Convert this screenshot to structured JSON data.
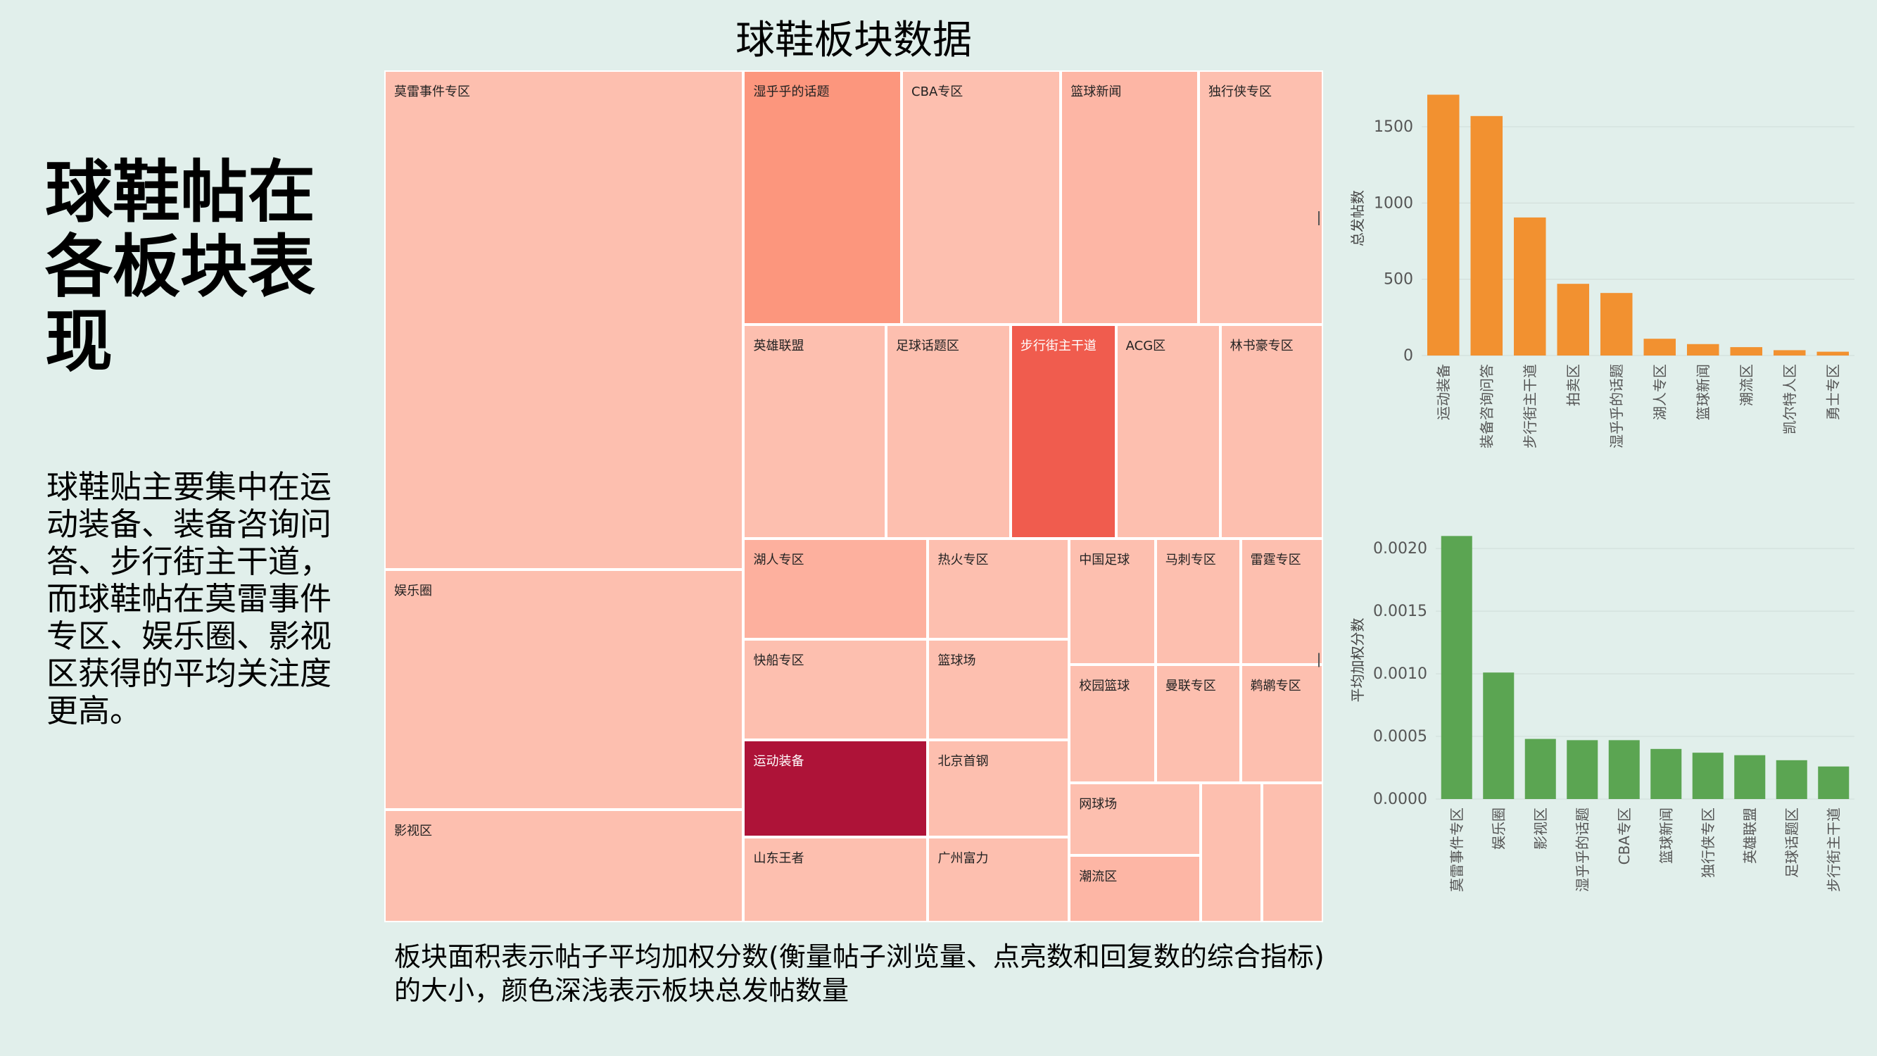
{
  "slide": {
    "heading": "球鞋帖在\n各板块表现",
    "summary": "球鞋贴主要集中在运动装备、装备咨询问答、步行街主干道，而球鞋帖在莫雷事件专区、娱乐圈、影视区获得的平均关注度更高。"
  },
  "treemap": {
    "title": "球鞋板块数据",
    "caption": "板块面积表示帖子平均加权分数(衡量帖子浏览量、点亮数和回复数的综合指标)\n的大小，颜色深浅表示板块总发帖数量",
    "tiles": [
      {
        "label": "莫雷事件专区",
        "color": "#fdbfaf"
      },
      {
        "label": "娱乐圈",
        "color": "#fdbfaf"
      },
      {
        "label": "影视区",
        "color": "#fdbfaf"
      },
      {
        "label": "湿乎乎的话题",
        "color": "#fc967d"
      },
      {
        "label": "CBA专区",
        "color": "#fdbfaf"
      },
      {
        "label": "篮球新闻",
        "color": "#fdb6a5"
      },
      {
        "label": "独行侠专区",
        "color": "#fdbfaf"
      },
      {
        "label": "英雄联盟",
        "color": "#fdbfaf"
      },
      {
        "label": "足球话题区",
        "color": "#fdbfaf"
      },
      {
        "label": "步行街主干道",
        "color": "#f05c4e"
      },
      {
        "label": "ACG区",
        "color": "#fdbfaf"
      },
      {
        "label": "林书豪专区",
        "color": "#fdbfaf"
      },
      {
        "label": "湖人专区",
        "color": "#fdb09e"
      },
      {
        "label": "热火专区",
        "color": "#fdbfaf"
      },
      {
        "label": "快船专区",
        "color": "#fdbfaf"
      },
      {
        "label": "篮球场",
        "color": "#fdbfaf"
      },
      {
        "label": "运动装备",
        "color": "#ae1338"
      },
      {
        "label": "北京首钢",
        "color": "#fdbfaf"
      },
      {
        "label": "山东王者",
        "color": "#fdbfaf"
      },
      {
        "label": "广州富力",
        "color": "#fdbfaf"
      },
      {
        "label": "中国足球",
        "color": "#fdbfaf"
      },
      {
        "label": "马刺专区",
        "color": "#fdbfaf"
      },
      {
        "label": "雷霆专区",
        "color": "#fdbfaf"
      },
      {
        "label": "校园篮球",
        "color": "#fdbfaf"
      },
      {
        "label": "曼联专区",
        "color": "#fdbfaf"
      },
      {
        "label": "鹈鹕专区",
        "color": "#fdbfaf"
      },
      {
        "label": "网球场",
        "color": "#fdbfaf"
      },
      {
        "label": "潮流区",
        "color": "#fdb6a5"
      },
      {
        "label": "",
        "color": "#fdbfaf"
      },
      {
        "label": "",
        "color": "#fdbfaf"
      }
    ]
  },
  "chart_data": [
    {
      "type": "bar",
      "title": "",
      "ylabel": "总发帖数",
      "color": "#f29130",
      "categories": [
        "运动装备",
        "装备咨询问答",
        "步行街主干道",
        "拍卖区",
        "湿乎乎的话题",
        "湖人专区",
        "篮球新闻",
        "潮流区",
        "凯尔特人区",
        "勇士专区"
      ],
      "values": [
        1710,
        1570,
        905,
        470,
        410,
        110,
        75,
        55,
        35,
        25
      ],
      "yticks": [
        "0",
        "500",
        "1000",
        "1500"
      ],
      "ylim": [
        0,
        1800
      ]
    },
    {
      "type": "bar",
      "title": "",
      "ylabel": "平均加权分数",
      "color": "#5ba552",
      "categories": [
        "莫雷事件专区",
        "娱乐圈",
        "影视区",
        "湿乎乎的话题",
        "CBA专区",
        "篮球新闻",
        "独行侠专区",
        "英雄联盟",
        "足球话题区",
        "步行街主干道"
      ],
      "values": [
        0.0021,
        0.00101,
        0.00048,
        0.00047,
        0.00047,
        0.0004,
        0.00037,
        0.00035,
        0.00031,
        0.00026
      ],
      "yticks": [
        "0.0000",
        "0.0005",
        "0.0010",
        "0.0015",
        "0.0020"
      ],
      "ylim": [
        0,
        0.00222
      ]
    }
  ]
}
